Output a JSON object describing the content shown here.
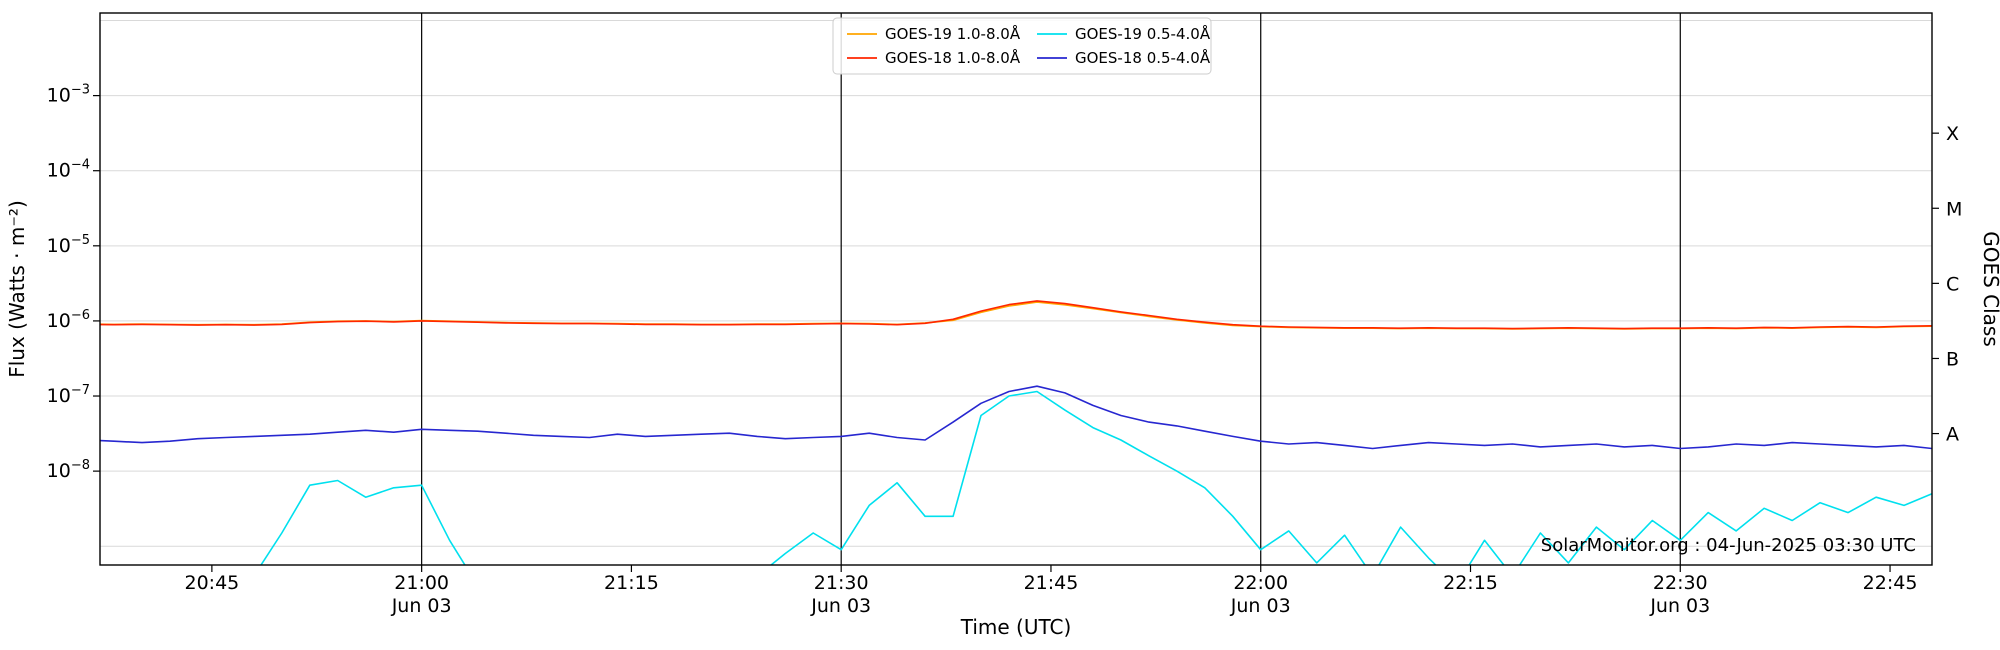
{
  "chart_data": {
    "type": "line",
    "title": "",
    "xlabel": "Time (UTC)",
    "ylabel": "Flux (Watts · m⁻²)",
    "ylabel_right": "GOES Class",
    "watermark": "SolarMonitor.org : 04-Jun-2025 03:30 UTC",
    "x_unit": "minutes since 00:00 UTC on 03-Jun-2025",
    "x_time_range": [
      "20:37",
      "22:48"
    ],
    "xlim": [
      1237,
      1368
    ],
    "ylim_log10": [
      -9.25,
      -1.9
    ],
    "grid": "horizontal gridlines at each decade, log y-axis",
    "legend_position": "top center, 2 columns",
    "xticks": [
      {
        "min": 1245,
        "label": "20:45",
        "sublabel": ""
      },
      {
        "min": 1260,
        "label": "21:00",
        "sublabel": "Jun 03"
      },
      {
        "min": 1275,
        "label": "21:15",
        "sublabel": ""
      },
      {
        "min": 1290,
        "label": "21:30",
        "sublabel": "Jun 03"
      },
      {
        "min": 1305,
        "label": "21:45",
        "sublabel": ""
      },
      {
        "min": 1320,
        "label": "22:00",
        "sublabel": "Jun 03"
      },
      {
        "min": 1335,
        "label": "22:15",
        "sublabel": ""
      },
      {
        "min": 1350,
        "label": "22:30",
        "sublabel": "Jun 03"
      },
      {
        "min": 1365,
        "label": "22:45",
        "sublabel": ""
      }
    ],
    "ytick_exponents": [
      -3,
      -4,
      -5,
      -6,
      -7,
      -8
    ],
    "gridline_exponents": [
      -2,
      -3,
      -4,
      -5,
      -6,
      -7,
      -8,
      -9
    ],
    "goes_class_ticks": [
      {
        "label": "X",
        "log10_level": -3.5
      },
      {
        "label": "M",
        "log10_level": -4.5
      },
      {
        "label": "C",
        "log10_level": -5.5
      },
      {
        "label": "B",
        "log10_level": -6.5
      },
      {
        "label": "A",
        "log10_level": -7.5
      }
    ],
    "vlines_min": [
      1260,
      1290,
      1320,
      1350
    ],
    "x_min": [
      1236,
      1238,
      1240,
      1242,
      1244,
      1246,
      1248,
      1250,
      1252,
      1254,
      1256,
      1258,
      1260,
      1262,
      1264,
      1266,
      1268,
      1270,
      1272,
      1274,
      1276,
      1278,
      1280,
      1282,
      1284,
      1286,
      1288,
      1290,
      1292,
      1294,
      1296,
      1298,
      1300,
      1302,
      1304,
      1306,
      1308,
      1310,
      1312,
      1314,
      1316,
      1318,
      1320,
      1322,
      1324,
      1326,
      1328,
      1330,
      1332,
      1334,
      1336,
      1338,
      1340,
      1342,
      1344,
      1346,
      1348,
      1350,
      1352,
      1354,
      1356,
      1358,
      1360,
      1362,
      1364,
      1366,
      1368
    ],
    "series": [
      {
        "name": "GOES-19 1.0-8.0Å",
        "color": "#ffa500",
        "values": [
          9.1e-07,
          9e-07,
          9.1e-07,
          9e-07,
          8.9e-07,
          9e-07,
          8.9e-07,
          9.1e-07,
          9.6e-07,
          9.9e-07,
          1e-06,
          9.8e-07,
          1.01e-06,
          9.9e-07,
          9.7e-07,
          9.5e-07,
          9.4e-07,
          9.3e-07,
          9.3e-07,
          9.2e-07,
          9.1e-07,
          9.1e-07,
          9e-07,
          9e-07,
          9.1e-07,
          9.1e-07,
          9.2e-07,
          9.3e-07,
          9.2e-07,
          9e-07,
          9.4e-07,
          1.02e-06,
          1.3e-06,
          1.58e-06,
          1.78e-06,
          1.64e-06,
          1.46e-06,
          1.29e-06,
          1.15e-06,
          1.03e-06,
          9.4e-07,
          8.7e-07,
          8.4e-07,
          8.2e-07,
          8.1e-07,
          8e-07,
          8e-07,
          7.9e-07,
          8e-07,
          7.9e-07,
          7.9e-07,
          7.8e-07,
          7.9e-07,
          8e-07,
          7.9e-07,
          7.8e-07,
          7.9e-07,
          7.9e-07,
          8e-07,
          7.9e-07,
          8.1e-07,
          8e-07,
          8.2e-07,
          8.3e-07,
          8.2e-07,
          8.4e-07,
          8.5e-07
        ]
      },
      {
        "name": "GOES-18 1.0-8.0Å",
        "color": "#ff2600",
        "values": [
          9e-07,
          8.9e-07,
          9e-07,
          8.9e-07,
          8.8e-07,
          8.9e-07,
          8.8e-07,
          9e-07,
          9.5e-07,
          9.8e-07,
          9.9e-07,
          9.7e-07,
          1e-06,
          9.8e-07,
          9.6e-07,
          9.4e-07,
          9.3e-07,
          9.2e-07,
          9.2e-07,
          9.1e-07,
          9e-07,
          9e-07,
          8.9e-07,
          8.9e-07,
          9e-07,
          9e-07,
          9.1e-07,
          9.2e-07,
          9.1e-07,
          8.9e-07,
          9.3e-07,
          1.05e-06,
          1.35e-06,
          1.65e-06,
          1.85e-06,
          1.7e-06,
          1.5e-06,
          1.32e-06,
          1.18e-06,
          1.05e-06,
          9.6e-07,
          8.9e-07,
          8.5e-07,
          8.3e-07,
          8.2e-07,
          8.1e-07,
          8.1e-07,
          8e-07,
          8.1e-07,
          8e-07,
          8e-07,
          7.9e-07,
          8e-07,
          8.1e-07,
          8e-07,
          7.9e-07,
          8e-07,
          8e-07,
          8.1e-07,
          8e-07,
          8.2e-07,
          8.1e-07,
          8.3e-07,
          8.4e-07,
          8.3e-07,
          8.5e-07,
          8.6e-07
        ]
      },
      {
        "name": "GOES-19 0.5-4.0Å",
        "color": "#00e0ee",
        "values": [
          3e-10,
          2e-10,
          3e-10,
          2e-10,
          3e-10,
          2e-10,
          4e-10,
          1.5e-09,
          6.5e-09,
          7.5e-09,
          4.5e-09,
          6e-09,
          6.5e-09,
          1.2e-09,
          3e-10,
          2e-10,
          3e-10,
          2e-10,
          3e-10,
          2e-10,
          3e-10,
          2e-10,
          3e-10,
          2e-10,
          4e-10,
          8e-10,
          1.5e-09,
          9e-10,
          3.5e-09,
          7e-09,
          2.5e-09,
          2.5e-09,
          5.5e-08,
          1e-07,
          1.15e-07,
          6.5e-08,
          3.8e-08,
          2.6e-08,
          1.6e-08,
          1e-08,
          6e-09,
          2.5e-09,
          9e-10,
          1.6e-09,
          6e-10,
          1.4e-09,
          4e-10,
          1.8e-09,
          7e-10,
          3e-10,
          1.2e-09,
          4e-10,
          1.5e-09,
          6e-10,
          1.8e-09,
          9e-10,
          2.2e-09,
          1.2e-09,
          2.8e-09,
          1.6e-09,
          3.2e-09,
          2.2e-09,
          3.8e-09,
          2.8e-09,
          4.5e-09,
          3.5e-09,
          5e-09
        ]
      },
      {
        "name": "GOES-18 0.5-4.0Å",
        "color": "#2727d0",
        "values": [
          2.6e-08,
          2.5e-08,
          2.4e-08,
          2.5e-08,
          2.7e-08,
          2.8e-08,
          2.9e-08,
          3e-08,
          3.1e-08,
          3.3e-08,
          3.5e-08,
          3.3e-08,
          3.6e-08,
          3.5e-08,
          3.4e-08,
          3.2e-08,
          3e-08,
          2.9e-08,
          2.8e-08,
          3.1e-08,
          2.9e-08,
          3e-08,
          3.1e-08,
          3.2e-08,
          2.9e-08,
          2.7e-08,
          2.8e-08,
          2.9e-08,
          3.2e-08,
          2.8e-08,
          2.6e-08,
          4.5e-08,
          8e-08,
          1.15e-07,
          1.35e-07,
          1.1e-07,
          7.5e-08,
          5.5e-08,
          4.5e-08,
          4e-08,
          3.4e-08,
          2.9e-08,
          2.5e-08,
          2.3e-08,
          2.4e-08,
          2.2e-08,
          2e-08,
          2.2e-08,
          2.4e-08,
          2.3e-08,
          2.2e-08,
          2.3e-08,
          2.1e-08,
          2.2e-08,
          2.3e-08,
          2.1e-08,
          2.2e-08,
          2e-08,
          2.1e-08,
          2.3e-08,
          2.2e-08,
          2.4e-08,
          2.3e-08,
          2.2e-08,
          2.1e-08,
          2.2e-08,
          2e-08
        ]
      }
    ]
  }
}
